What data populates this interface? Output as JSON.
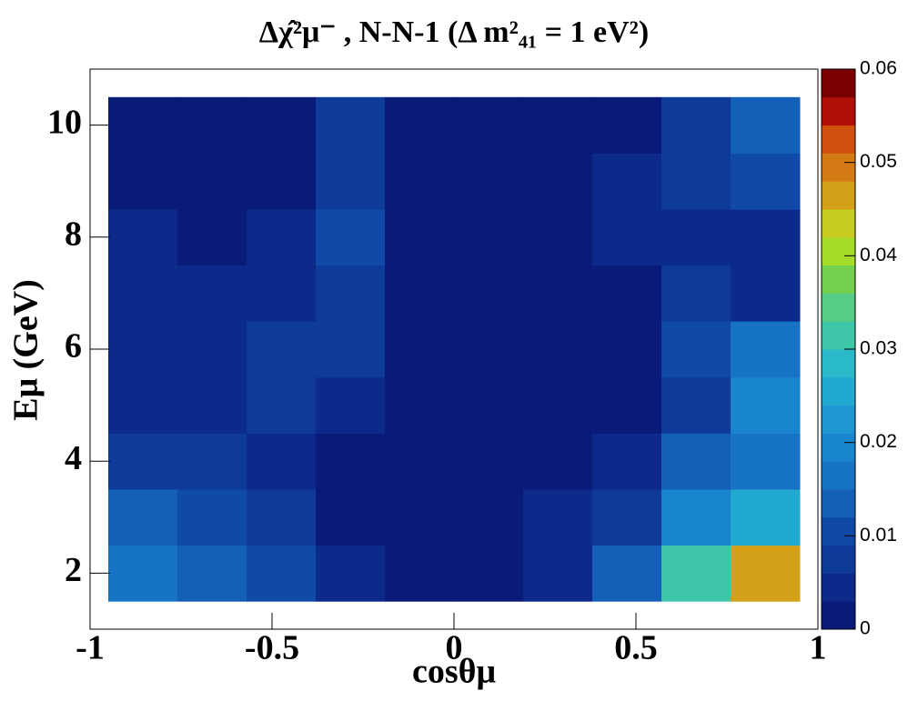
{
  "chart_data": {
    "type": "contour",
    "title": "Δχ̂²μ⁻ , N-N-1 (Δ m²₄₁ = 1 eV²)",
    "x_label": "cosθμ",
    "y_label": "Eμ (GeV)",
    "x": [
      -0.855,
      -0.665,
      -0.475,
      -0.285,
      -0.095,
      0.095,
      0.285,
      0.475,
      0.665,
      0.855
    ],
    "y": [
      2,
      3,
      4,
      5,
      6,
      7,
      8,
      9,
      10
    ],
    "z": [
      [
        0.016,
        0.012,
        0.009,
        0.003,
        0.001,
        0.001,
        0.004,
        0.012,
        0.03,
        0.045
      ],
      [
        0.012,
        0.009,
        0.006,
        0.002,
        0.001,
        0.001,
        0.003,
        0.008,
        0.02,
        0.025
      ],
      [
        0.008,
        0.006,
        0.004,
        0.002,
        0.001,
        0.001,
        0.002,
        0.004,
        0.012,
        0.015
      ],
      [
        0.004,
        0.004,
        0.006,
        0.003,
        0.001,
        0.001,
        0.002,
        0.002,
        0.006,
        0.018
      ],
      [
        0.005,
        0.004,
        0.008,
        0.006,
        0.001,
        0.001,
        0.001,
        0.002,
        0.01,
        0.016
      ],
      [
        0.004,
        0.003,
        0.005,
        0.008,
        0.002,
        0.001,
        0.001,
        0.002,
        0.006,
        0.005
      ],
      [
        0.004,
        0.002,
        0.003,
        0.01,
        0.002,
        0.001,
        0.001,
        0.003,
        0.005,
        0.004
      ],
      [
        0.002,
        0.001,
        0.002,
        0.008,
        0.001,
        0.001,
        0.001,
        0.003,
        0.007,
        0.009
      ],
      [
        0.001,
        0.001,
        0.001,
        0.007,
        0.001,
        0.001,
        0.001,
        0.002,
        0.008,
        0.012
      ]
    ],
    "xlim": [
      -1,
      1
    ],
    "xticks": [
      -1,
      -0.5,
      0,
      0.5,
      1
    ],
    "ylim": [
      1,
      11
    ],
    "yticks": [
      2,
      4,
      6,
      8,
      10
    ],
    "zlim": [
      0,
      0.06
    ],
    "zticks": [
      0,
      0.01,
      0.02,
      0.03,
      0.04,
      0.05,
      0.06
    ],
    "colors": [
      "#0a1a78",
      "#0c2a8a",
      "#0e3a9a",
      "#0f4aa8",
      "#1460b8",
      "#1673c5",
      "#1a85cf",
      "#2097d3",
      "#22a9cf",
      "#2ab9c8",
      "#3ec6a8",
      "#56cc84",
      "#74d04e",
      "#a6dc2a",
      "#c8cc1e",
      "#d4a018",
      "#d47a14",
      "#d0520e",
      "#b01008",
      "#7a0000"
    ]
  }
}
